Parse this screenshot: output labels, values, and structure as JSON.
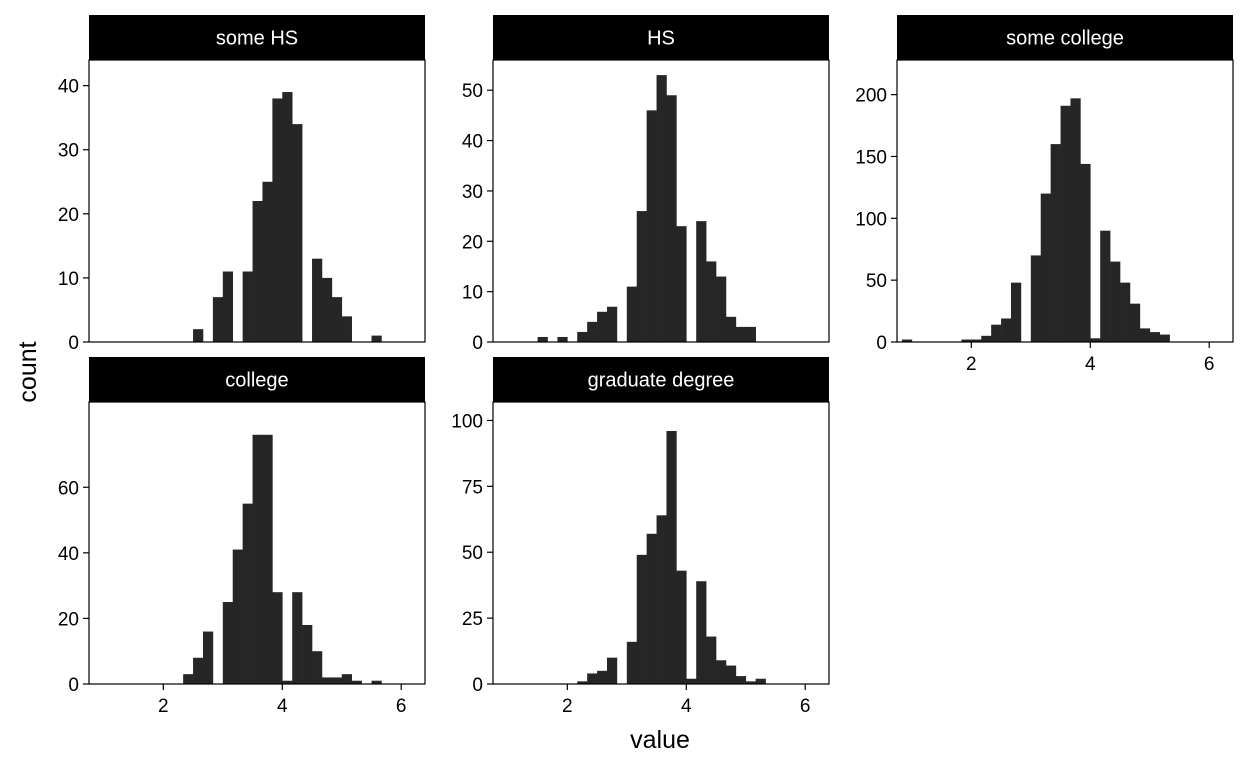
{
  "chart_data": {
    "type": "bar",
    "layout": "facet-grid",
    "xlabel": "value",
    "ylabel": "count",
    "xlim": [
      0.75,
      6.4
    ],
    "x_ticks": [
      2,
      4,
      6
    ],
    "bin_width": 0.1667,
    "bin_start": 0.833,
    "bar_color": "#262626",
    "strip_color": "#000000",
    "strip_text_color": "#ffffff",
    "panels": [
      {
        "name": "some HS",
        "ylim": [
          0,
          44
        ],
        "y_ticks": [
          0,
          10,
          20,
          30,
          40
        ],
        "values": [
          0,
          0,
          0,
          0,
          0,
          0,
          0,
          0,
          0,
          0,
          2,
          0,
          7,
          11,
          0,
          11,
          22,
          25,
          38,
          39,
          34,
          0,
          13,
          10,
          7,
          4,
          0,
          0,
          1,
          0,
          0,
          0,
          0
        ]
      },
      {
        "name": "HS",
        "ylim": [
          0,
          56
        ],
        "y_ticks": [
          0,
          10,
          20,
          30,
          40,
          50
        ],
        "values": [
          0,
          0,
          0,
          0,
          1,
          0,
          1,
          0,
          2,
          4,
          6,
          7,
          0,
          11,
          26,
          46,
          53,
          49,
          23,
          0,
          24,
          16,
          13,
          5,
          3,
          3,
          0,
          0,
          0,
          0,
          0,
          0,
          0
        ]
      },
      {
        "name": "some college",
        "ylim": [
          0,
          228
        ],
        "y_ticks": [
          0,
          50,
          100,
          150,
          200
        ],
        "values": [
          2,
          0,
          0,
          0,
          0,
          0,
          2,
          2,
          5,
          14,
          19,
          48,
          0,
          70,
          120,
          160,
          191,
          197,
          144,
          3,
          90,
          65,
          48,
          31,
          11,
          8,
          6,
          0,
          0,
          0,
          0,
          0,
          0
        ]
      },
      {
        "name": "college",
        "ylim": [
          0,
          86
        ],
        "y_ticks": [
          0,
          20,
          40,
          60
        ],
        "values": [
          0,
          0,
          0,
          0,
          0,
          0,
          0,
          0,
          0,
          3,
          8,
          16,
          0,
          25,
          41,
          55,
          76,
          76,
          28,
          1,
          28,
          18,
          10,
          2,
          2,
          3,
          1,
          0,
          1,
          0,
          0,
          0,
          0
        ]
      },
      {
        "name": "graduate degree",
        "ylim": [
          0,
          107
        ],
        "y_ticks": [
          0,
          25,
          50,
          75,
          100
        ],
        "values": [
          0,
          0,
          0,
          0,
          0,
          0,
          0,
          0,
          1,
          4,
          5,
          10,
          0,
          16,
          49,
          57,
          64,
          96,
          43,
          2,
          39,
          18,
          9,
          7,
          3,
          1,
          2,
          0,
          0,
          0,
          0,
          0,
          0
        ]
      }
    ]
  }
}
